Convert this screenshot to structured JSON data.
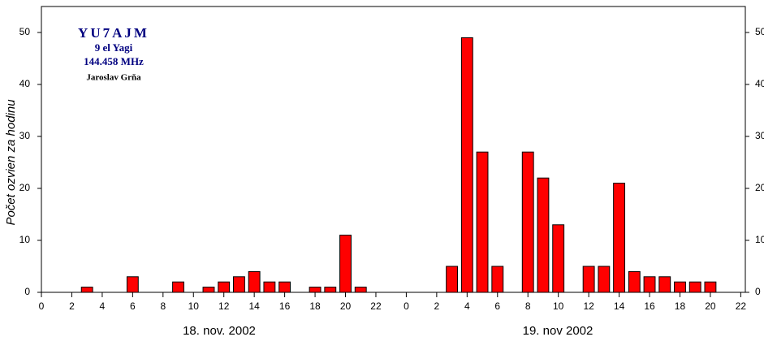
{
  "chart_data": {
    "type": "bar",
    "y_label": "Počet ozvien za hodinu",
    "annotations": [
      "YU7AJM",
      "9 el Yagi",
      "144.458 MHz",
      "Jaroslav Grňa"
    ],
    "day_labels": [
      "18. nov. 2002",
      "19. nov 2002"
    ],
    "x": [
      3,
      6,
      9,
      11,
      12,
      13,
      14,
      15,
      16,
      18,
      19,
      20,
      21,
      27,
      28,
      29,
      30,
      32,
      33,
      34,
      36,
      37,
      38,
      39,
      40,
      41,
      42,
      43,
      44
    ],
    "values": [
      1,
      3,
      2,
      1,
      2,
      3,
      4,
      2,
      2,
      1,
      1,
      11,
      1,
      5,
      49,
      27,
      5,
      27,
      22,
      13,
      5,
      5,
      21,
      4,
      3,
      3,
      2,
      2,
      2
    ],
    "color": "#ff0000",
    "xlim": [
      0,
      46.3
    ],
    "xticks": [
      0,
      2,
      4,
      6,
      8,
      10,
      12,
      14,
      16,
      18,
      20,
      22,
      {
        "value": 24,
        "label": "0"
      },
      {
        "value": 26,
        "label": "2"
      },
      {
        "value": 28,
        "label": "4"
      },
      {
        "value": 30,
        "label": "6"
      },
      {
        "value": 32,
        "label": "8"
      },
      {
        "value": 34,
        "label": "10"
      },
      {
        "value": 36,
        "label": "12"
      },
      {
        "value": 38,
        "label": "14"
      },
      {
        "value": 40,
        "label": "16"
      },
      {
        "value": 42,
        "label": "18"
      },
      {
        "value": 44,
        "label": "20"
      },
      {
        "value": 46,
        "label": "22"
      }
    ],
    "ylim": [
      0,
      55
    ],
    "yticks": [
      0,
      10,
      20,
      30,
      40,
      50
    ]
  }
}
